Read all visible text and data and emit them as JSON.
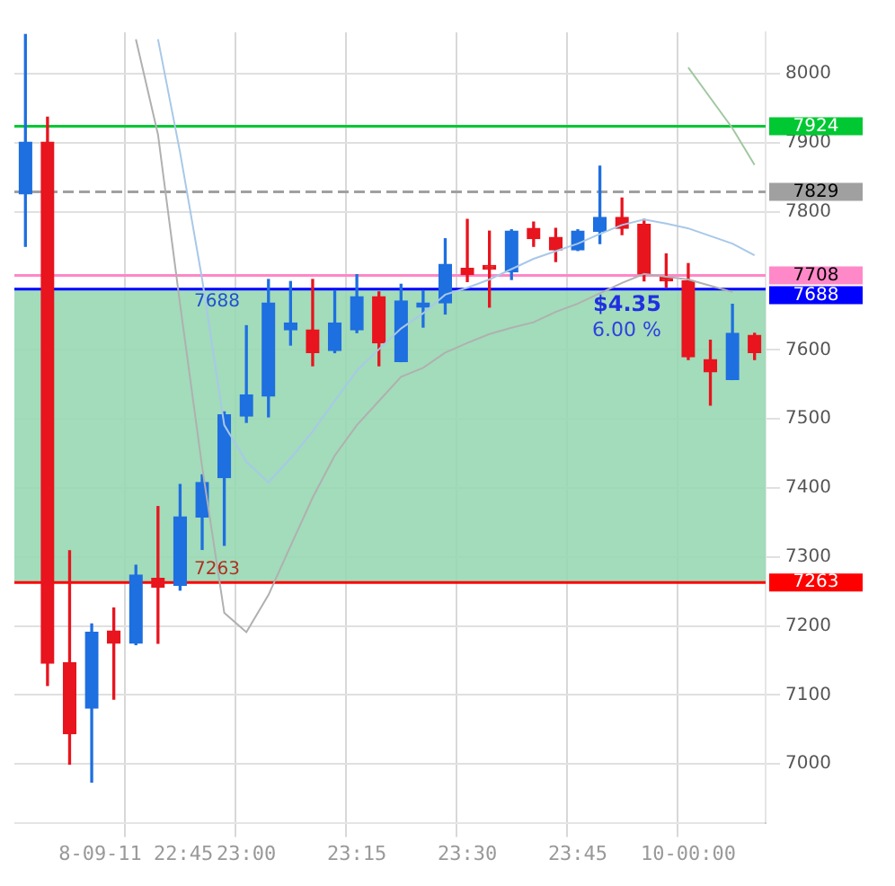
{
  "chart_data": {
    "type": "candlestick",
    "categories": [
      null,
      null,
      null,
      null,
      null,
      "8-09-11 22:45",
      null,
      null,
      null,
      null,
      "23:00",
      null,
      null,
      null,
      null,
      "23:15",
      null,
      null,
      null,
      null,
      "23:30",
      null,
      null,
      null,
      null,
      "23:45",
      null,
      null,
      null,
      null,
      "10-00:00",
      null,
      null,
      null
    ],
    "ohlc": [
      [
        7826,
        8057,
        7750,
        7901
      ],
      [
        7901,
        7937,
        7114,
        7146
      ],
      [
        7147,
        7309,
        7000,
        7044
      ],
      [
        7081,
        7203,
        6974,
        7191
      ],
      [
        7193,
        7226,
        7094,
        7175
      ],
      [
        7175,
        7288,
        7173,
        7274
      ],
      [
        7269,
        7373,
        7175,
        7256
      ],
      [
        7259,
        7405,
        7252,
        7358
      ],
      [
        7358,
        7419,
        7311,
        7408
      ],
      [
        7415,
        7510,
        7317,
        7506
      ],
      [
        7504,
        7635,
        7495,
        7535
      ],
      [
        7533,
        7702,
        7503,
        7668
      ],
      [
        7629,
        7699,
        7607,
        7639
      ],
      [
        7629,
        7702,
        7577,
        7596
      ],
      [
        7599,
        7686,
        7596,
        7639
      ],
      [
        7629,
        7709,
        7625,
        7677
      ],
      [
        7677,
        7684,
        7577,
        7610
      ],
      [
        7583,
        7695,
        7583,
        7671
      ],
      [
        7662,
        7686,
        7633,
        7668
      ],
      [
        7668,
        7761,
        7652,
        7724
      ],
      [
        7718,
        7789,
        7699,
        7709
      ],
      [
        7718,
        7772,
        7662,
        7717
      ],
      [
        7713,
        7774,
        7702,
        7772
      ],
      [
        7776,
        7785,
        7750,
        7761
      ],
      [
        7763,
        7776,
        7728,
        7745
      ],
      [
        7745,
        7774,
        7744,
        7772
      ],
      [
        7772,
        7866,
        7754,
        7792
      ],
      [
        7792,
        7820,
        7767,
        7776
      ],
      [
        7782,
        7789,
        7700,
        7710
      ],
      [
        7704,
        7739,
        7691,
        7700
      ],
      [
        7700,
        7725,
        7586,
        7590
      ],
      [
        7586,
        7614,
        7520,
        7568
      ],
      [
        7557,
        7666,
        7557,
        7624
      ],
      [
        7621,
        7624,
        7586,
        7596
      ]
    ],
    "colors": [
      "#1e6fe0",
      "#e8141e",
      "#e8141e",
      "#1e6fe0",
      "#e8141e",
      "#1e6fe0",
      "#e8141e",
      "#1e6fe0",
      "#1e6fe0",
      "#1e6fe0",
      "#1e6fe0",
      "#1e6fe0",
      "#1e6fe0",
      "#e8141e",
      "#1e6fe0",
      "#1e6fe0",
      "#e8141e",
      "#1e6fe0",
      "#1e6fe0",
      "#1e6fe0",
      "#e8141e",
      "#e8141e",
      "#1e6fe0",
      "#e8141e",
      "#e8141e",
      "#1e6fe0",
      "#1e6fe0",
      "#e8141e",
      "#e8141e",
      "#e8141e",
      "#e8141e",
      "#e8141e",
      "#1e6fe0",
      "#e8141e"
    ],
    "series": [
      {
        "type": "line",
        "color": "#a8c8e8",
        "values": [
          null,
          null,
          null,
          null,
          null,
          null,
          8050,
          7886,
          7702,
          7491,
          7438,
          7408,
          7443,
          7482,
          7526,
          7570,
          7601,
          7631,
          7653,
          7680,
          7690,
          7702,
          7717,
          7732,
          7743,
          7754,
          7768,
          7781,
          7789,
          7783,
          7776,
          7765,
          7754,
          7737
        ]
      },
      {
        "type": "line",
        "color": "#b0b0b0",
        "values": [
          null,
          null,
          null,
          null,
          null,
          8050,
          7912,
          7666,
          7430,
          7219,
          7191,
          7245,
          7316,
          7386,
          7447,
          7491,
          7526,
          7561,
          7574,
          7596,
          7610,
          7623,
          7632,
          7640,
          7655,
          7667,
          7682,
          7697,
          7710,
          7706,
          7702,
          7693,
          7684,
          null
        ]
      },
      {
        "type": "line",
        "color": "#a0c8a0",
        "values": [
          null,
          null,
          null,
          null,
          null,
          null,
          null,
          null,
          null,
          null,
          null,
          null,
          null,
          null,
          null,
          null,
          null,
          null,
          null,
          null,
          null,
          null,
          null,
          null,
          null,
          null,
          null,
          null,
          null,
          null,
          8009,
          7965,
          7921,
          7868
        ]
      }
    ],
    "ylim": [
      6915,
      8060
    ],
    "yticks": [
      7000,
      7100,
      7200,
      7300,
      7400,
      7500,
      7600,
      7800,
      7900,
      8000
    ],
    "ref_lines": [
      {
        "axis": "y",
        "value": 7924,
        "label": "7924",
        "color": "#00c832"
      },
      {
        "axis": "y",
        "value": 7829,
        "label": "7829",
        "color": "#a0a0a0",
        "line_style": "dashed"
      },
      {
        "axis": "y",
        "value": 7708,
        "label": "7708",
        "color": "#ff88c8"
      },
      {
        "axis": "y",
        "value": 7688,
        "label": "7688",
        "color": "#0000ff"
      },
      {
        "axis": "y",
        "value": 7263,
        "label": "7263",
        "color": "#ff0000"
      }
    ],
    "bands": [
      {
        "axis": "y",
        "from": 7263,
        "to": 7688,
        "color": "#98d8b4"
      }
    ],
    "annotations": [
      "7688",
      "7263",
      "$4.35",
      "6.00 %"
    ],
    "grid": true,
    "legend": false
  }
}
